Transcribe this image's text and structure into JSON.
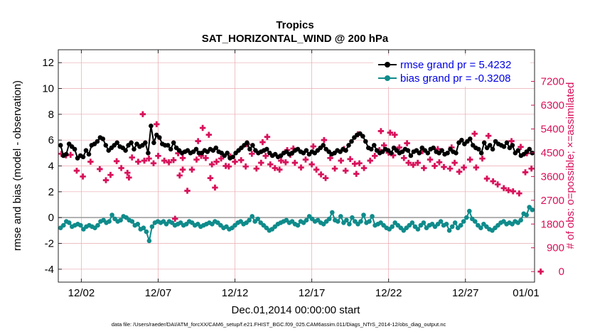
{
  "chart_data": {
    "type": "line",
    "title": "Tropics",
    "subtitle": "SAT_HORIZONTAL_WIND @ 200 hPa",
    "xlabel": "Dec.01,2014 00:00:00 start",
    "ylabel_left": "rmse and bias (model - observation)",
    "ylabel_right": "# of obs: o=possible; ×=assimilated",
    "footnote": "data file: /Users/raeder/DAI/ATM_forcXX/CAM6_setup/f.e21.FHIST_BGC.f09_025.CAM6assim.011/Diags_NTrS_2014-12/obs_diag_output.nc",
    "x_range_days": [
      0.5,
      31.5
    ],
    "x_ticks": [
      {
        "day": 2,
        "label": "12/02"
      },
      {
        "day": 7,
        "label": "12/07"
      },
      {
        "day": 12,
        "label": "12/12"
      },
      {
        "day": 17,
        "label": "12/17"
      },
      {
        "day": 22,
        "label": "12/22"
      },
      {
        "day": 27,
        "label": "12/27"
      },
      {
        "day": 32,
        "label": "01/01"
      }
    ],
    "ylim_left": [
      -5,
      13
    ],
    "yticks_left": [
      "-4",
      "-2",
      "0",
      "2",
      "4",
      "6",
      "8",
      "10",
      "12"
    ],
    "ylim_right": [
      -400,
      8400
    ],
    "yticks_right": [
      "0",
      "900",
      "1800",
      "2700",
      "3600",
      "4500",
      "5400",
      "6300",
      "7200"
    ],
    "grid": true,
    "legend_position": "top-right",
    "colors": {
      "rmse": "#000000",
      "bias": "#0f8b8b",
      "obs": "#d8105a",
      "zero_line": "#9a9a9a",
      "grid": "#e8a8b0"
    },
    "series": [
      {
        "name": "rmse",
        "legend": "rmse grand pr = 5.4232",
        "axis": "left",
        "values": [
          5.6,
          4.8,
          4.9,
          5.7,
          5.5,
          5.3,
          4.6,
          4.8,
          4.7,
          5.2,
          4.9,
          5.6,
          5.7,
          5.9,
          6.2,
          6.1,
          5.6,
          5.2,
          5.4,
          5.6,
          5.8,
          5.5,
          5.4,
          5.2,
          5.6,
          5.8,
          5.3,
          5.7,
          5.5,
          5.6,
          5.8,
          5.0,
          7.1,
          5.8,
          6.4,
          6.2,
          5.7,
          5.6,
          5.6,
          5.3,
          5.8,
          5.4,
          5.2,
          5.0,
          5.1,
          5.2,
          5.0,
          5.1,
          5.3,
          5.0,
          5.0,
          5.2,
          5.1,
          5.3,
          5.2,
          5.4,
          5.1,
          5.0,
          4.8,
          5.0,
          4.6,
          4.7,
          5.0,
          5.2,
          5.4,
          5.6,
          5.8,
          5.3,
          5.6,
          5.2,
          5.0,
          5.1,
          5.2,
          5.3,
          5.0,
          4.8,
          4.9,
          4.7,
          4.8,
          5.0,
          5.1,
          4.9,
          5.0,
          5.2,
          5.3,
          5.1,
          5.0,
          5.2,
          4.9,
          5.1,
          5.0,
          5.2,
          5.4,
          5.6,
          5.3,
          5.1,
          4.9,
          5.0,
          5.2,
          5.1,
          5.3,
          5.2,
          5.6,
          5.9,
          6.2,
          6.4,
          6.5,
          6.3,
          5.9,
          5.4,
          5.3,
          5.6,
          5.2,
          5.0,
          5.1,
          5.3,
          5.2,
          5.0,
          5.4,
          5.2,
          5.0,
          5.1,
          5.3,
          5.2,
          4.8,
          5.1,
          5.2,
          5.0,
          5.4,
          5.2,
          5.0,
          5.3,
          5.4,
          5.1,
          5.0,
          5.2,
          4.9,
          5.0,
          5.3,
          5.1,
          5.0,
          5.8,
          6.0,
          5.7,
          5.9,
          6.1,
          5.6,
          5.4,
          5.3,
          5.0,
          5.8,
          5.4,
          5.6,
          5.3,
          5.9,
          5.7,
          5.6,
          5.5,
          5.8,
          5.4,
          5.6,
          5.0,
          5.2,
          4.8,
          4.9,
          5.1,
          5.3,
          5.0
        ]
      },
      {
        "name": "bias",
        "legend": "bias grand pr = -0.3208",
        "axis": "left",
        "values": [
          -0.8,
          -0.6,
          -0.3,
          -0.4,
          -0.7,
          -0.6,
          -0.5,
          -0.6,
          -0.9,
          -0.7,
          -0.6,
          -0.7,
          -0.8,
          -0.6,
          -0.3,
          -0.2,
          -0.4,
          -0.3,
          0.2,
          -0.1,
          -0.3,
          -0.2,
          0.1,
          0.0,
          -0.2,
          -0.3,
          -0.6,
          -0.5,
          -0.9,
          -0.8,
          -1.1,
          -1.8,
          -0.7,
          -0.4,
          -0.3,
          -0.4,
          -0.3,
          -0.5,
          -0.3,
          -0.4,
          -0.6,
          -0.5,
          -0.4,
          -0.6,
          -0.5,
          -0.3,
          -0.4,
          -0.6,
          -0.5,
          -0.7,
          -0.6,
          -0.5,
          -0.4,
          -0.5,
          -0.3,
          -0.4,
          -0.6,
          -0.8,
          -0.7,
          -0.9,
          -0.8,
          -0.6,
          -0.4,
          -0.3,
          -0.5,
          -0.4,
          -0.2,
          0.1,
          -0.3,
          -0.1,
          -0.4,
          -0.6,
          -0.8,
          -1.0,
          -0.9,
          -0.7,
          -0.5,
          -0.4,
          -0.3,
          -0.2,
          -0.4,
          -0.3,
          -0.5,
          -0.6,
          -0.3,
          -0.4,
          -0.2,
          0.1,
          -0.1,
          -0.3,
          -0.2,
          -0.4,
          -0.5,
          -0.3,
          -0.1,
          0.4,
          -0.2,
          -0.3,
          0.1,
          -0.4,
          -0.2,
          -0.5,
          0.0,
          -0.3,
          -0.5,
          -0.3,
          0.2,
          -0.4,
          -0.3,
          0.1,
          -0.6,
          -0.5,
          -0.4,
          -0.6,
          -0.8,
          -0.9,
          -0.7,
          -0.4,
          -0.6,
          -0.8,
          -1.0,
          -0.8,
          -0.6,
          -0.4,
          -0.7,
          -0.9,
          -0.6,
          -0.4,
          -0.8,
          -0.6,
          -0.5,
          -0.7,
          -0.5,
          -0.3,
          -0.6,
          -0.5,
          -1.0,
          -0.7,
          -0.4,
          -0.8,
          -0.6,
          -0.3,
          0.0,
          0.5,
          -0.1,
          -0.3,
          -0.6,
          -0.8,
          -0.5,
          -0.7,
          -0.9,
          -1.0,
          -0.8,
          -0.6,
          -0.4,
          -0.3,
          -0.5,
          -0.4,
          -0.5,
          -0.3,
          -0.4,
          -0.2,
          0.3,
          0.2,
          0.8,
          0.6
        ]
      }
    ],
    "observations": {
      "name": "assimilated obs count",
      "axis": "right",
      "marker": "×",
      "points": [
        {
          "x": 0.7,
          "y": 4460
        },
        {
          "x": 1.0,
          "y": 4400
        },
        {
          "x": 1.3,
          "y": 4420
        },
        {
          "x": 1.7,
          "y": 3820
        },
        {
          "x": 2.1,
          "y": 3600
        },
        {
          "x": 2.6,
          "y": 4160
        },
        {
          "x": 3.2,
          "y": 3880
        },
        {
          "x": 3.6,
          "y": 3460
        },
        {
          "x": 3.9,
          "y": 3660
        },
        {
          "x": 4.3,
          "y": 4180
        },
        {
          "x": 4.6,
          "y": 3920
        },
        {
          "x": 5.0,
          "y": 3740
        },
        {
          "x": 5.3,
          "y": 4320
        },
        {
          "x": 5.7,
          "y": 4160
        },
        {
          "x": 6.1,
          "y": 4200
        },
        {
          "x": 6.4,
          "y": 4280
        },
        {
          "x": 6.7,
          "y": 4100
        },
        {
          "x": 7.0,
          "y": 4380
        },
        {
          "x": 7.4,
          "y": 4200
        },
        {
          "x": 7.7,
          "y": 4140
        },
        {
          "x": 8.0,
          "y": 4220
        },
        {
          "x": 8.3,
          "y": 4480
        },
        {
          "x": 8.6,
          "y": 4300
        },
        {
          "x": 8.9,
          "y": 3060
        },
        {
          "x": 9.2,
          "y": 3860
        },
        {
          "x": 9.5,
          "y": 4240
        },
        {
          "x": 9.8,
          "y": 4380
        },
        {
          "x": 10.1,
          "y": 4300
        },
        {
          "x": 10.5,
          "y": 4060
        },
        {
          "x": 10.8,
          "y": 4160
        },
        {
          "x": 11.1,
          "y": 4280
        },
        {
          "x": 11.4,
          "y": 4000
        },
        {
          "x": 11.7,
          "y": 4360
        },
        {
          "x": 12.0,
          "y": 4160
        },
        {
          "x": 12.4,
          "y": 4220
        },
        {
          "x": 12.7,
          "y": 3980
        },
        {
          "x": 13.1,
          "y": 4460
        },
        {
          "x": 13.4,
          "y": 3900
        },
        {
          "x": 13.7,
          "y": 4120
        },
        {
          "x": 14.0,
          "y": 4380
        },
        {
          "x": 14.3,
          "y": 4060
        },
        {
          "x": 14.6,
          "y": 3920
        },
        {
          "x": 15.0,
          "y": 4200
        },
        {
          "x": 15.3,
          "y": 4140
        },
        {
          "x": 15.6,
          "y": 4420
        },
        {
          "x": 15.9,
          "y": 4120
        },
        {
          "x": 16.3,
          "y": 3940
        },
        {
          "x": 16.6,
          "y": 4240
        },
        {
          "x": 17.0,
          "y": 4060
        },
        {
          "x": 17.3,
          "y": 3860
        },
        {
          "x": 17.6,
          "y": 3680
        },
        {
          "x": 17.9,
          "y": 3540
        },
        {
          "x": 18.2,
          "y": 4300
        },
        {
          "x": 18.5,
          "y": 3900
        },
        {
          "x": 18.9,
          "y": 4200
        },
        {
          "x": 19.2,
          "y": 3820
        },
        {
          "x": 19.5,
          "y": 4260
        },
        {
          "x": 19.8,
          "y": 4080
        },
        {
          "x": 20.1,
          "y": 4100
        },
        {
          "x": 20.4,
          "y": 3920
        },
        {
          "x": 20.8,
          "y": 4200
        },
        {
          "x": 21.1,
          "y": 4380
        },
        {
          "x": 21.4,
          "y": 4600
        },
        {
          "x": 21.7,
          "y": 4780
        },
        {
          "x": 22.0,
          "y": 4500
        },
        {
          "x": 22.3,
          "y": 4400
        },
        {
          "x": 22.7,
          "y": 4700
        },
        {
          "x": 23.0,
          "y": 4300
        },
        {
          "x": 23.3,
          "y": 4120
        },
        {
          "x": 23.6,
          "y": 4040
        },
        {
          "x": 23.9,
          "y": 4120
        },
        {
          "x": 24.3,
          "y": 3920
        },
        {
          "x": 24.7,
          "y": 4240
        },
        {
          "x": 25.0,
          "y": 4000
        },
        {
          "x": 25.3,
          "y": 4140
        },
        {
          "x": 25.6,
          "y": 3960
        },
        {
          "x": 26.0,
          "y": 3900
        },
        {
          "x": 26.3,
          "y": 4120
        },
        {
          "x": 26.6,
          "y": 3780
        },
        {
          "x": 26.9,
          "y": 3940
        },
        {
          "x": 27.3,
          "y": 4240
        },
        {
          "x": 27.7,
          "y": 3940
        },
        {
          "x": 28.1,
          "y": 4280
        },
        {
          "x": 28.4,
          "y": 3520
        },
        {
          "x": 28.8,
          "y": 3420
        },
        {
          "x": 29.1,
          "y": 3300
        },
        {
          "x": 29.5,
          "y": 3160
        },
        {
          "x": 29.8,
          "y": 3080
        },
        {
          "x": 30.1,
          "y": 3040
        },
        {
          "x": 30.5,
          "y": 2960
        },
        {
          "x": 30.9,
          "y": 3760
        },
        {
          "x": 31.3,
          "y": 3900
        },
        {
          "x": 6.0,
          "y": 5960
        },
        {
          "x": 6.9,
          "y": 5580
        },
        {
          "x": 9.9,
          "y": 5440
        },
        {
          "x": 14.1,
          "y": 5100
        },
        {
          "x": 15.8,
          "y": 4660
        },
        {
          "x": 19.1,
          "y": 4640
        },
        {
          "x": 20.0,
          "y": 5200
        },
        {
          "x": 21.5,
          "y": 5320
        },
        {
          "x": 22.4,
          "y": 5180
        },
        {
          "x": 23.2,
          "y": 4860
        },
        {
          "x": 24.2,
          "y": 4560
        },
        {
          "x": 25.2,
          "y": 4640
        },
        {
          "x": 26.1,
          "y": 4700
        },
        {
          "x": 27.6,
          "y": 5220
        },
        {
          "x": 28.5,
          "y": 5140
        },
        {
          "x": 30.0,
          "y": 4940
        },
        {
          "x": 30.6,
          "y": 4720
        },
        {
          "x": 31.0,
          "y": 4480
        },
        {
          "x": 10.3,
          "y": 5180
        },
        {
          "x": 12.8,
          "y": 4820
        },
        {
          "x": 17.8,
          "y": 4980
        },
        {
          "x": 22.1,
          "y": 5260
        },
        {
          "x": 13.8,
          "y": 4900
        },
        {
          "x": 17.1,
          "y": 4740
        },
        {
          "x": 8.6,
          "y": 3860
        },
        {
          "x": 9.6,
          "y": 4940
        },
        {
          "x": 8.1,
          "y": 2000
        },
        {
          "x": 10.7,
          "y": 3180
        },
        {
          "x": 10.4,
          "y": 3540
        },
        {
          "x": 11.6,
          "y": 3980
        },
        {
          "x": 15.4,
          "y": 4600
        },
        {
          "x": 5.1,
          "y": 3560
        },
        {
          "x": 8.4,
          "y": 3640
        },
        {
          "x": 14.9,
          "y": 3860
        },
        {
          "x": 19.9,
          "y": 3700
        },
        {
          "x": 31.9,
          "y": 0
        }
      ]
    }
  }
}
